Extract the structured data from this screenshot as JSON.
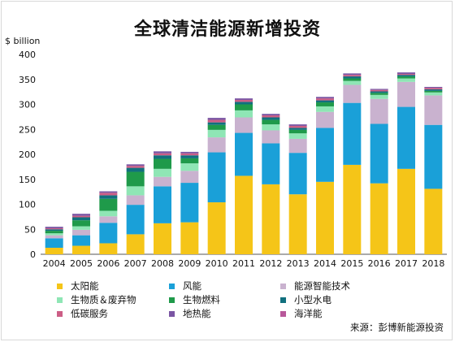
{
  "chart_data": {
    "type": "bar",
    "stacked": true,
    "title": "全球清洁能源新增投资",
    "ylabel": "$ billion",
    "xlabel": "",
    "ylim": [
      0,
      400
    ],
    "yticks": [
      0,
      50,
      100,
      150,
      200,
      250,
      300,
      350,
      400
    ],
    "categories": [
      "2004",
      "2005",
      "2006",
      "2007",
      "2008",
      "2009",
      "2010",
      "2011",
      "2012",
      "2013",
      "2014",
      "2015",
      "2016",
      "2017",
      "2018"
    ],
    "series": [
      {
        "name": "太阳能",
        "color": "#f5c518",
        "values": [
          13,
          17,
          22,
          40,
          62,
          64,
          104,
          157,
          140,
          120,
          145,
          179,
          142,
          171,
          131
        ]
      },
      {
        "name": "风能",
        "color": "#1aa0d8",
        "values": [
          19,
          21,
          41,
          59,
          74,
          79,
          100,
          86,
          82,
          83,
          108,
          124,
          119,
          124,
          128
        ]
      },
      {
        "name": "能源智能技术",
        "color": "#c9b2cf",
        "values": [
          6,
          11,
          13,
          19,
          19,
          24,
          30,
          31,
          26,
          28,
          32,
          36,
          50,
          50,
          59
        ]
      },
      {
        "name": "生物质＆废弃物",
        "color": "#8fe6b5",
        "values": [
          4,
          7,
          11,
          18,
          16,
          15,
          15,
          14,
          12,
          11,
          11,
          8,
          8,
          7,
          6
        ]
      },
      {
        "name": "生物燃料",
        "color": "#1f9a4a",
        "values": [
          5,
          12,
          24,
          29,
          20,
          10,
          10,
          12,
          9,
          7,
          8,
          5,
          4,
          4,
          3
        ]
      },
      {
        "name": "小型水电",
        "color": "#11707e",
        "values": [
          3,
          6,
          7,
          8,
          7,
          6,
          5,
          5,
          5,
          4,
          4,
          4,
          3,
          3,
          3
        ]
      },
      {
        "name": "低碳服务",
        "color": "#cc5e86",
        "values": [
          2,
          3,
          5,
          4,
          4,
          4,
          5,
          4,
          4,
          4,
          4,
          3,
          3,
          2,
          3
        ]
      },
      {
        "name": "地热能",
        "color": "#7a55a3",
        "values": [
          3,
          4,
          3,
          3,
          4,
          3,
          4,
          3,
          3,
          3,
          3,
          3,
          2,
          3,
          2
        ]
      },
      {
        "name": "海洋能",
        "color": "#b8589a",
        "values": [
          0,
          0,
          0,
          0,
          0,
          0,
          0,
          0,
          0,
          0,
          0,
          0,
          0,
          0,
          0
        ]
      }
    ],
    "legend_placement": "bottom",
    "grid": false
  },
  "legend": [
    {
      "label": "太阳能",
      "color": "#f5c518"
    },
    {
      "label": "风能",
      "color": "#1aa0d8"
    },
    {
      "label": "能源智能技术",
      "color": "#c9b2cf"
    },
    {
      "label": "生物质＆废弃物",
      "color": "#8fe6b5"
    },
    {
      "label": "生物燃料",
      "color": "#1f9a4a"
    },
    {
      "label": "小型水电",
      "color": "#11707e"
    },
    {
      "label": "低碳服务",
      "color": "#cc5e86"
    },
    {
      "label": "地热能",
      "color": "#7a55a3"
    },
    {
      "label": "海洋能",
      "color": "#b8589a"
    }
  ],
  "source": "来源：彭博新能源投资"
}
